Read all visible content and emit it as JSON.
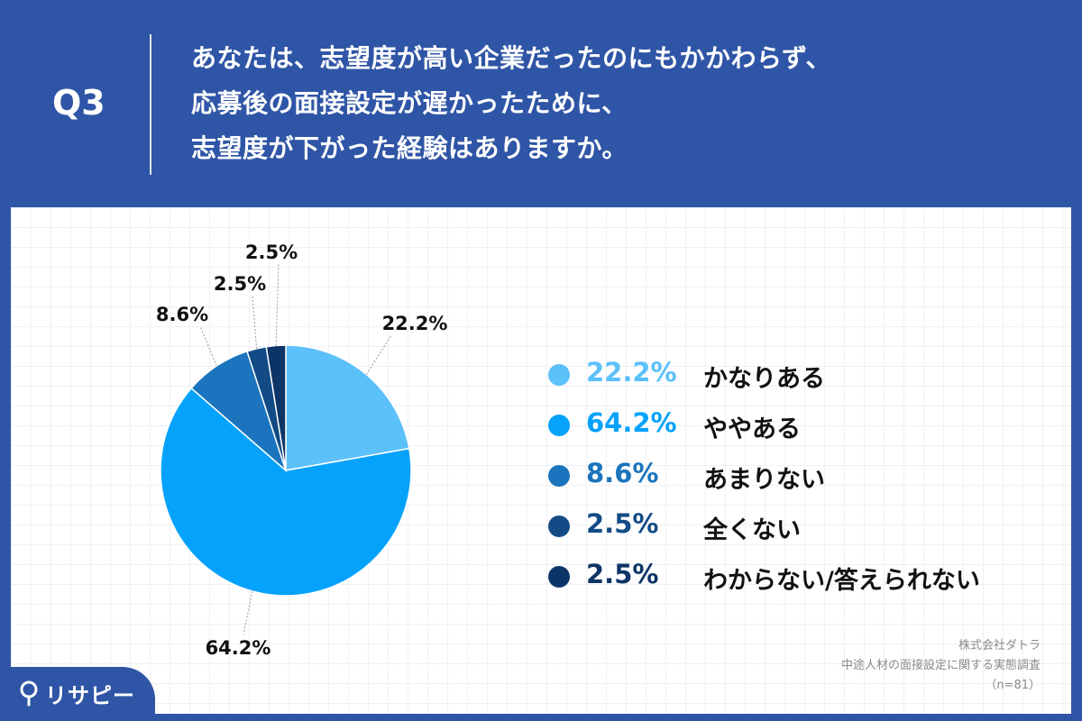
{
  "header": {
    "question_number": "Q3",
    "question_lines": [
      "あなたは、志望度が高い企業だったのにもかかわらず、",
      "応募後の面接設定が遅かったために、",
      "志望度が下がった経験はありますか。"
    ]
  },
  "chart_data": {
    "type": "pie",
    "categories": [
      "かなりある",
      "ややある",
      "あまりない",
      "全くない",
      "わからない/答えられない"
    ],
    "values": [
      22.2,
      64.2,
      8.6,
      2.5,
      2.5
    ],
    "value_labels": [
      "22.2%",
      "64.2%",
      "8.6%",
      "2.5%",
      "2.5%"
    ],
    "colors": [
      "#5cc0fb",
      "#05a2fb",
      "#1b74bd",
      "#124b86",
      "#0d3467"
    ],
    "start": "12 o'clock",
    "direction": "clockwise",
    "legend_position": "right"
  },
  "legend": {
    "items": [
      {
        "pct": "22.2%",
        "label": "かなりある"
      },
      {
        "pct": "64.2%",
        "label": "ややある"
      },
      {
        "pct": "8.6%",
        "label": "あまりない"
      },
      {
        "pct": "2.5%",
        "label": "全くない"
      },
      {
        "pct": "2.5%",
        "label": "わからない/答えられない"
      }
    ]
  },
  "source": {
    "company": "株式会社ダトラ",
    "survey": "中途人材の面接設定に関する実態調査",
    "sample": "（n=81）"
  },
  "logo": {
    "text": "リサピー"
  },
  "colors": {
    "header_bg": "#2f55a6",
    "panel_bg": "#ffffff",
    "grid": "#eef1f5"
  }
}
